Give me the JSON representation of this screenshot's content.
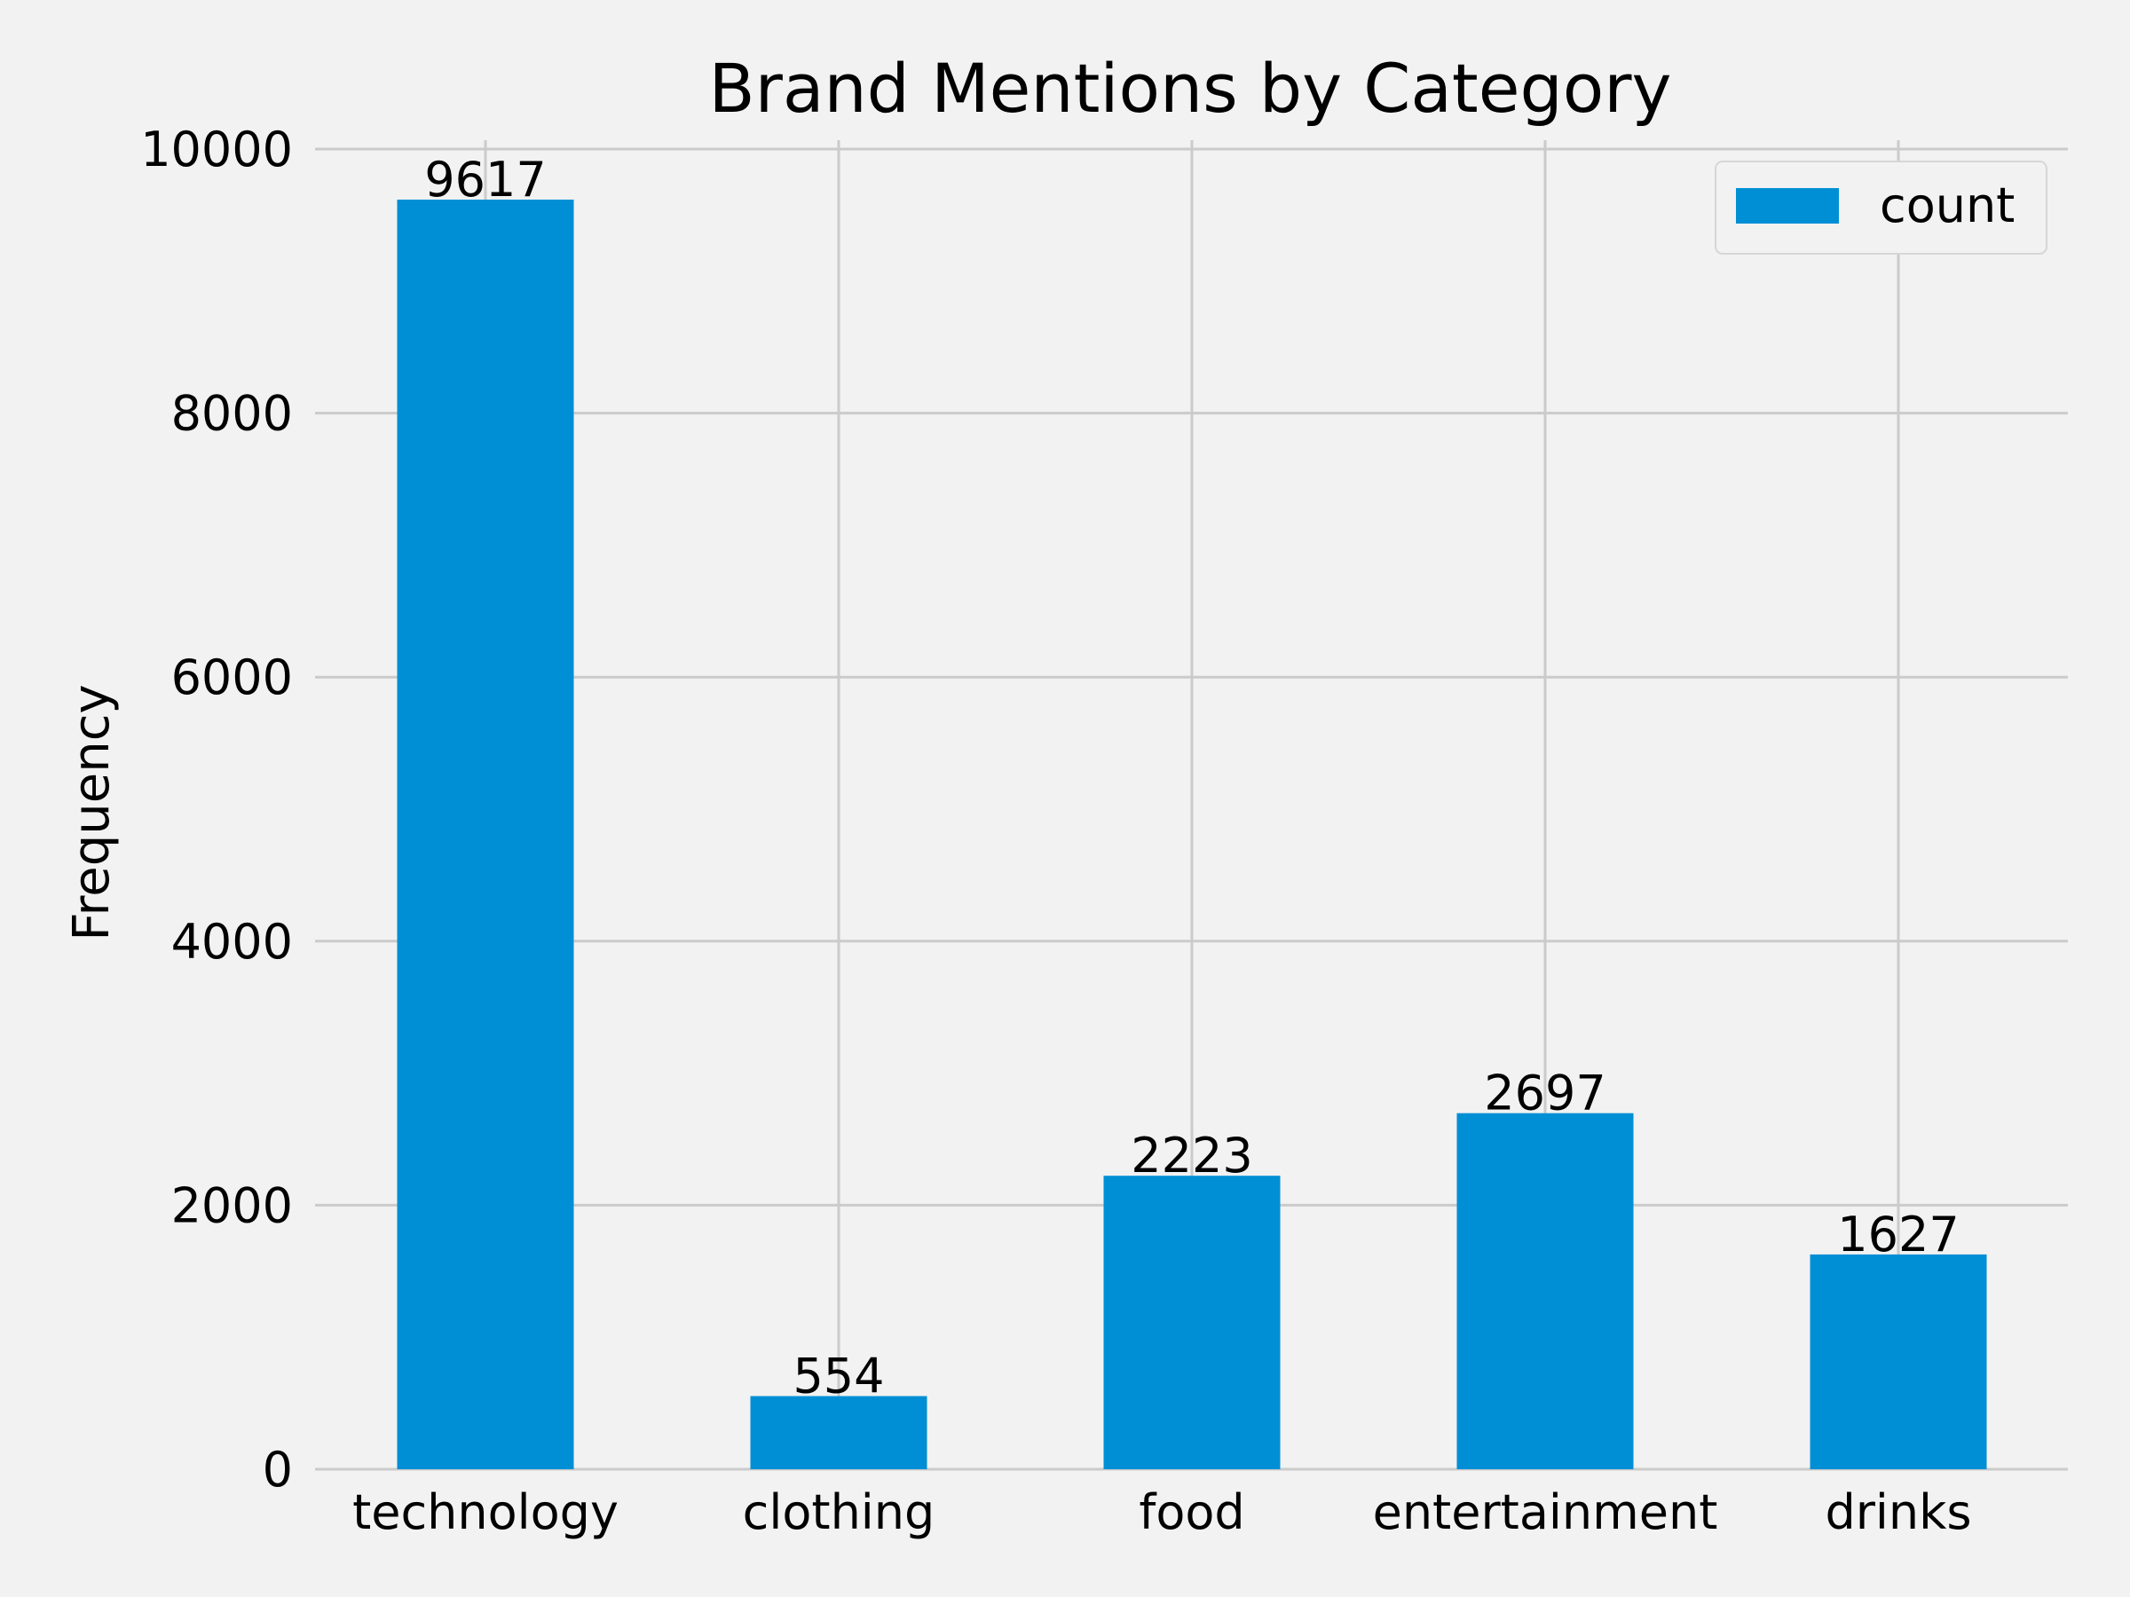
{
  "chart_data": {
    "type": "bar",
    "title": "Brand Mentions by Category",
    "xlabel": "",
    "ylabel": "Frequency",
    "categories": [
      "technology",
      "clothing",
      "food",
      "entertainment",
      "drinks"
    ],
    "series": [
      {
        "name": "count",
        "values": [
          9617,
          554,
          2223,
          2697,
          1627
        ]
      }
    ],
    "ylim": [
      0,
      10000
    ],
    "yticks": [
      0,
      2000,
      4000,
      6000,
      8000,
      10000
    ],
    "grid": true,
    "legend_position": "top-right",
    "colors": {
      "bar": "#008fd5",
      "background": "#f2f2f2",
      "grid": "#cbcbcb"
    }
  }
}
